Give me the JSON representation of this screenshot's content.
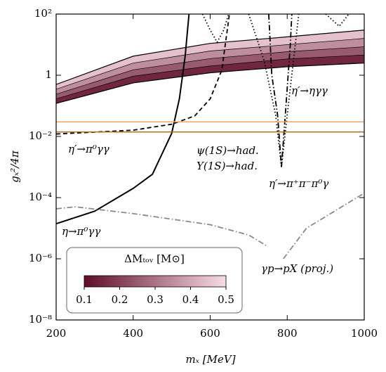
{
  "chart_data": {
    "type": "line",
    "ylog": true,
    "xlabel": "mₓ [MeV]",
    "ylabel": "gₓ²/4π",
    "xlim": [
      200,
      1000
    ],
    "xticks": [
      200,
      400,
      600,
      800,
      1000
    ],
    "ylim": [
      1e-08,
      100
    ],
    "yticks": [
      {
        "value": 1e-08,
        "label": "10⁻⁸"
      },
      {
        "value": 1e-06,
        "label": "10⁻⁶"
      },
      {
        "value": 0.0001,
        "label": "10⁻⁴"
      },
      {
        "value": 0.01,
        "label": "10⁻²"
      },
      1,
      {
        "value": 100,
        "label": "10²"
      }
    ],
    "band": {
      "x": [
        200,
        400,
        600,
        800,
        1000
      ],
      "values": [
        [
          0.12,
          0.56,
          1.2,
          1.9,
          2.5
        ],
        [
          0.17,
          0.93,
          2.0,
          3.4,
          4.6
        ],
        [
          0.24,
          1.5,
          3.5,
          5.9,
          8.5
        ],
        [
          0.35,
          2.5,
          6.2,
          10,
          16
        ],
        [
          0.5,
          4.2,
          11,
          18,
          30
        ]
      ]
    },
    "colorbar": {
      "label": "ΔMₜₒᵥ [M⊙]",
      "lim": [
        0.1,
        0.5
      ],
      "ticks": [
        0.1,
        0.2,
        0.3,
        0.4,
        0.5
      ],
      "colors": [
        "#5e0c28",
        "#f8dbe6"
      ]
    },
    "series": [
      {
        "name": "η→π⁰γγ",
        "color": "#000000",
        "dash": "solid",
        "x": [
          200,
          300,
          400,
          450,
          500,
          520,
          535,
          545
        ],
        "values": [
          1.4e-05,
          3.6e-05,
          0.0002,
          0.00058,
          0.0126,
          0.17,
          4.2,
          100
        ]
      },
      {
        "name": "η′→π⁰γγ",
        "color": "#000000",
        "dash": "dashed",
        "x": [
          200,
          400,
          500,
          560,
          600,
          630,
          650
        ],
        "values": [
          0.012,
          0.016,
          0.025,
          0.047,
          0.17,
          1.45,
          100
        ]
      },
      {
        "name": "η′→ηγγ",
        "color": "#000000",
        "dash": "dotted",
        "x": [
          580,
          600,
          618,
          635,
          648,
          660,
          700,
          740,
          770,
          785,
          800,
          830,
          870,
          900,
          935,
          960
        ],
        "values": [
          100,
          30,
          12,
          30,
          100,
          null,
          100,
          3,
          0.05,
          0.001,
          0.05,
          100,
          null,
          100,
          40,
          100
        ]
      },
      {
        "name": "η′→π⁺π⁻π⁰γ",
        "color": "#000000",
        "dash": "dashdot",
        "x": [
          752,
          760,
          775,
          785,
          795,
          808,
          812
        ],
        "values": [
          100,
          1,
          0.05,
          0.001,
          0.05,
          10,
          100
        ]
      },
      {
        "name": "ψ(1S)→had.",
        "color": "#f0a860",
        "dash": "solid",
        "x": [
          200,
          1000
        ],
        "values": [
          0.03,
          0.03
        ]
      },
      {
        "name": "Υ(1S)→had.",
        "color": "#c0600e",
        "dash": "solid",
        "x": [
          200,
          1000
        ],
        "values": [
          0.014,
          0.014
        ]
      },
      {
        "name": "γp→pX (proj.)",
        "color": "#8a8a8a",
        "dash": "dashdot",
        "x": [
          200,
          250,
          400,
          600,
          700,
          750,
          770,
          790,
          850,
          1000
        ],
        "values": [
          4.3e-05,
          5e-05,
          3e-05,
          1.3e-05,
          6e-06,
          2.5e-06,
          null,
          1e-06,
          1e-05,
          0.00014
        ]
      }
    ]
  }
}
